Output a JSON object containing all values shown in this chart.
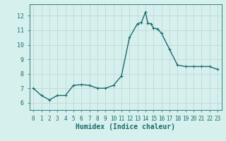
{
  "x": [
    0,
    1,
    2,
    3,
    4,
    5,
    6,
    7,
    8,
    9,
    10,
    11,
    12,
    13,
    13.5,
    14,
    14.3,
    14.7,
    15,
    15.5,
    16,
    17,
    18,
    19,
    20,
    21,
    22,
    23
  ],
  "y": [
    7.0,
    6.5,
    6.2,
    6.5,
    6.5,
    7.2,
    7.25,
    7.2,
    7.0,
    7.0,
    7.2,
    7.85,
    10.5,
    11.45,
    11.55,
    12.25,
    11.5,
    11.45,
    11.15,
    11.1,
    10.8,
    9.7,
    8.6,
    8.5,
    8.5,
    8.5,
    8.5,
    8.3
  ],
  "line_color": "#1a6b6b",
  "marker": "+",
  "marker_size": 3,
  "bg_color": "#d6f0ee",
  "grid_color": "#c0d8d8",
  "tick_color": "#1a6b6b",
  "xlabel": "Humidex (Indice chaleur)",
  "xlabel_fontsize": 7,
  "ylim": [
    5.5,
    12.8
  ],
  "xlim": [
    -0.5,
    23.5
  ],
  "yticks": [
    6,
    7,
    8,
    9,
    10,
    11,
    12
  ],
  "xticks": [
    0,
    1,
    2,
    3,
    4,
    5,
    6,
    7,
    8,
    9,
    10,
    11,
    12,
    13,
    14,
    15,
    16,
    17,
    18,
    19,
    20,
    21,
    22,
    23
  ],
  "linewidth": 1.0,
  "marker_linewidth": 0.8
}
